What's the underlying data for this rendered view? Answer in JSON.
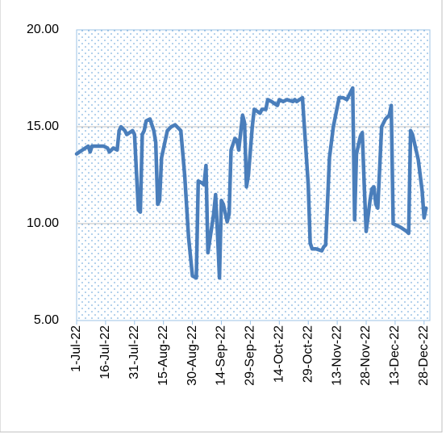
{
  "chart_data": {
    "type": "line",
    "x": [
      "2022-07-01",
      "2022-07-04",
      "2022-07-07",
      "2022-07-08",
      "2022-07-09",
      "2022-07-15",
      "2022-07-17",
      "2022-07-18",
      "2022-07-20",
      "2022-07-22",
      "2022-07-23",
      "2022-07-24",
      "2022-07-26",
      "2022-07-27",
      "2022-07-30",
      "2022-07-31",
      "2022-08-02",
      "2022-08-03",
      "2022-08-04",
      "2022-08-05",
      "2022-08-06",
      "2022-08-08",
      "2022-08-10",
      "2022-08-11",
      "2022-08-12",
      "2022-08-13",
      "2022-08-14",
      "2022-08-17",
      "2022-08-19",
      "2022-08-21",
      "2022-08-24",
      "2022-08-26",
      "2022-08-28",
      "2022-08-30",
      "2022-09-01",
      "2022-09-02",
      "2022-09-04",
      "2022-09-05",
      "2022-09-06",
      "2022-09-07",
      "2022-09-10",
      "2022-09-11",
      "2022-09-12",
      "2022-09-13",
      "2022-09-14",
      "2022-09-15",
      "2022-09-17",
      "2022-09-18",
      "2022-09-19",
      "2022-09-21",
      "2022-09-22",
      "2022-09-23",
      "2022-09-25",
      "2022-09-26",
      "2022-09-27",
      "2022-09-28",
      "2022-09-30",
      "2022-10-01",
      "2022-10-04",
      "2022-10-05",
      "2022-10-07",
      "2022-10-08",
      "2022-10-10",
      "2022-10-13",
      "2022-10-14",
      "2022-10-16",
      "2022-10-18",
      "2022-10-21",
      "2022-10-22",
      "2022-10-23",
      "2022-10-26",
      "2022-10-29",
      "2022-10-30",
      "2022-10-31",
      "2022-11-02",
      "2022-11-05",
      "2022-11-06",
      "2022-11-07",
      "2022-11-09",
      "2022-11-11",
      "2022-11-14",
      "2022-11-16",
      "2022-11-18",
      "2022-11-19",
      "2022-11-21",
      "2022-11-22",
      "2022-11-23",
      "2022-11-25",
      "2022-11-26",
      "2022-11-27",
      "2022-11-28",
      "2022-11-30",
      "2022-12-01",
      "2022-12-02",
      "2022-12-03",
      "2022-12-04",
      "2022-12-06",
      "2022-12-08",
      "2022-12-10",
      "2022-12-11",
      "2022-12-12",
      "2022-12-16",
      "2022-12-19",
      "2022-12-20",
      "2022-12-21",
      "2022-12-22",
      "2022-12-25",
      "2022-12-27",
      "2022-12-28",
      "2022-12-29"
    ],
    "series": [
      {
        "color": "#4a7ebb",
        "values": [
          13.6,
          13.8,
          14.0,
          13.7,
          14.0,
          14.0,
          13.9,
          13.7,
          13.9,
          13.8,
          14.8,
          15.0,
          14.8,
          14.6,
          14.8,
          14.6,
          10.7,
          10.6,
          14.6,
          14.8,
          15.3,
          15.4,
          14.8,
          14.2,
          11.0,
          11.2,
          13.4,
          14.8,
          15.0,
          15.1,
          14.8,
          12.5,
          9.3,
          7.3,
          7.2,
          12.2,
          12.1,
          12.0,
          13.0,
          8.5,
          10.5,
          11.5,
          9.5,
          7.2,
          11.2,
          11.0,
          10.1,
          10.5,
          13.8,
          14.4,
          14.3,
          13.8,
          15.6,
          15.2,
          11.9,
          12.5,
          15.0,
          15.9,
          15.7,
          15.9,
          15.9,
          16.4,
          16.3,
          16.1,
          16.4,
          16.3,
          16.4,
          16.3,
          16.4,
          16.3,
          16.5,
          12.0,
          9.0,
          8.7,
          8.7,
          8.6,
          8.8,
          8.9,
          13.4,
          15.0,
          16.5,
          16.5,
          16.4,
          16.6,
          17.0,
          10.2,
          13.6,
          14.5,
          14.7,
          12.0,
          9.6,
          11.2,
          11.8,
          11.9,
          11.0,
          10.8,
          15.0,
          15.4,
          15.6,
          16.1,
          10.0,
          9.8,
          9.6,
          9.5,
          14.8,
          14.6,
          13.3,
          11.7,
          10.3,
          10.8
        ]
      }
    ],
    "xlim": [
      "2022-07-01",
      "2022-12-31"
    ],
    "xticks": [
      {
        "value": "2022-07-01",
        "label": "1-Jul-22"
      },
      {
        "value": "2022-07-16",
        "label": "16-Jul-22"
      },
      {
        "value": "2022-07-31",
        "label": "31-Jul-22"
      },
      {
        "value": "2022-08-15",
        "label": "15-Aug-22"
      },
      {
        "value": "2022-08-30",
        "label": "30-Aug-22"
      },
      {
        "value": "2022-09-14",
        "label": "14-Sep-22"
      },
      {
        "value": "2022-09-29",
        "label": "29-Sep-22"
      },
      {
        "value": "2022-10-14",
        "label": "14-Oct-22"
      },
      {
        "value": "2022-10-29",
        "label": "29-Oct-22"
      },
      {
        "value": "2022-11-13",
        "label": "13-Nov-22"
      },
      {
        "value": "2022-11-28",
        "label": "28-Nov-22"
      },
      {
        "value": "2022-12-13",
        "label": "13-Dec-22"
      },
      {
        "value": "2022-12-28",
        "label": "28-Dec-22"
      }
    ],
    "ylim": [
      5,
      20
    ],
    "yticks": [
      {
        "value": 5,
        "label": "5.00"
      },
      {
        "value": 10,
        "label": "10.00"
      },
      {
        "value": 15,
        "label": "15.00"
      },
      {
        "value": 20,
        "label": "20.00"
      }
    ],
    "grid": true
  }
}
